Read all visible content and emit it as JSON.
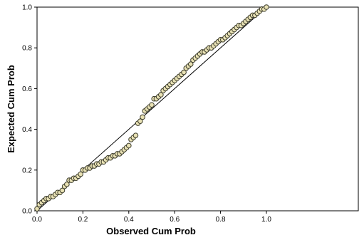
{
  "chart_data": {
    "type": "scatter",
    "title": "",
    "xlabel": "Observed Cum Prob",
    "ylabel": "Expected Cum Prob",
    "xlim": [
      0.0,
      1.0
    ],
    "ylim": [
      0.0,
      1.0
    ],
    "x_ticks": [
      "0.0",
      "0.2",
      "0.4",
      "0.6",
      "0.8",
      "1.0"
    ],
    "y_ticks": [
      "0.0",
      "0.2",
      "0.4",
      "0.6",
      "0.8",
      "1.0"
    ],
    "grid": false,
    "reference_line": {
      "from": [
        0,
        0
      ],
      "to": [
        1,
        1
      ]
    },
    "colors": {
      "marker_fill": "#e8e1b4",
      "marker_stroke": "#3a3a2a",
      "line": "#000000"
    },
    "series": [
      {
        "points": [
          [
            0.0,
            0.01
          ],
          [
            0.01,
            0.03
          ],
          [
            0.02,
            0.04
          ],
          [
            0.03,
            0.05
          ],
          [
            0.04,
            0.06
          ],
          [
            0.05,
            0.06
          ],
          [
            0.06,
            0.07
          ],
          [
            0.07,
            0.07
          ],
          [
            0.08,
            0.08
          ],
          [
            0.09,
            0.09
          ],
          [
            0.1,
            0.09
          ],
          [
            0.11,
            0.1
          ],
          [
            0.12,
            0.12
          ],
          [
            0.13,
            0.13
          ],
          [
            0.14,
            0.15
          ],
          [
            0.15,
            0.15
          ],
          [
            0.16,
            0.16
          ],
          [
            0.17,
            0.16
          ],
          [
            0.18,
            0.17
          ],
          [
            0.19,
            0.18
          ],
          [
            0.2,
            0.2
          ],
          [
            0.21,
            0.2
          ],
          [
            0.22,
            0.21
          ],
          [
            0.23,
            0.21
          ],
          [
            0.24,
            0.22
          ],
          [
            0.25,
            0.22
          ],
          [
            0.26,
            0.23
          ],
          [
            0.27,
            0.23
          ],
          [
            0.28,
            0.24
          ],
          [
            0.29,
            0.24
          ],
          [
            0.3,
            0.25
          ],
          [
            0.31,
            0.26
          ],
          [
            0.32,
            0.26
          ],
          [
            0.33,
            0.27
          ],
          [
            0.34,
            0.27
          ],
          [
            0.35,
            0.28
          ],
          [
            0.36,
            0.28
          ],
          [
            0.37,
            0.29
          ],
          [
            0.38,
            0.3
          ],
          [
            0.39,
            0.31
          ],
          [
            0.4,
            0.32
          ],
          [
            0.41,
            0.35
          ],
          [
            0.42,
            0.36
          ],
          [
            0.43,
            0.37
          ],
          [
            0.44,
            0.43
          ],
          [
            0.45,
            0.44
          ],
          [
            0.46,
            0.46
          ],
          [
            0.47,
            0.49
          ],
          [
            0.48,
            0.5
          ],
          [
            0.49,
            0.51
          ],
          [
            0.5,
            0.52
          ],
          [
            0.51,
            0.55
          ],
          [
            0.52,
            0.55
          ],
          [
            0.53,
            0.56
          ],
          [
            0.54,
            0.57
          ],
          [
            0.55,
            0.59
          ],
          [
            0.56,
            0.6
          ],
          [
            0.57,
            0.61
          ],
          [
            0.58,
            0.62
          ],
          [
            0.59,
            0.63
          ],
          [
            0.6,
            0.64
          ],
          [
            0.61,
            0.65
          ],
          [
            0.62,
            0.66
          ],
          [
            0.63,
            0.67
          ],
          [
            0.64,
            0.68
          ],
          [
            0.65,
            0.7
          ],
          [
            0.66,
            0.71
          ],
          [
            0.67,
            0.72
          ],
          [
            0.68,
            0.74
          ],
          [
            0.69,
            0.75
          ],
          [
            0.7,
            0.76
          ],
          [
            0.71,
            0.77
          ],
          [
            0.72,
            0.78
          ],
          [
            0.73,
            0.78
          ],
          [
            0.74,
            0.79
          ],
          [
            0.75,
            0.8
          ],
          [
            0.76,
            0.8
          ],
          [
            0.77,
            0.81
          ],
          [
            0.78,
            0.82
          ],
          [
            0.79,
            0.83
          ],
          [
            0.8,
            0.84
          ],
          [
            0.81,
            0.84
          ],
          [
            0.82,
            0.85
          ],
          [
            0.83,
            0.86
          ],
          [
            0.84,
            0.87
          ],
          [
            0.85,
            0.88
          ],
          [
            0.86,
            0.89
          ],
          [
            0.87,
            0.9
          ],
          [
            0.88,
            0.91
          ],
          [
            0.89,
            0.91
          ],
          [
            0.9,
            0.92
          ],
          [
            0.91,
            0.93
          ],
          [
            0.92,
            0.94
          ],
          [
            0.93,
            0.95
          ],
          [
            0.94,
            0.96
          ],
          [
            0.95,
            0.96
          ],
          [
            0.96,
            0.97
          ],
          [
            0.97,
            0.98
          ],
          [
            0.98,
            0.99
          ],
          [
            0.99,
            0.99
          ],
          [
            1.0,
            1.0
          ]
        ]
      }
    ]
  }
}
